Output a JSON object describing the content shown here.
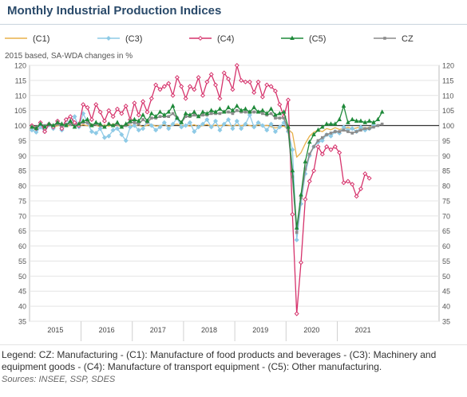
{
  "page": {
    "title": "Monthly Industrial Production Indices",
    "legend_note": "Legend: CZ: Manufacturing - (C1): Manufacture of food products and beverages - (C3): Machinery and equipment goods - (C4): Manufacture of transport equipment - (C5): Other manufacturing.",
    "sources": "Sources: INSEE, SSP, SDES"
  },
  "chart_data": {
    "type": "line",
    "subtitle": "2015 based, SA-WDA changes in %",
    "ylim": [
      35,
      120
    ],
    "yticks": [
      35,
      40,
      45,
      50,
      55,
      60,
      65,
      70,
      75,
      80,
      85,
      90,
      95,
      100,
      105,
      110,
      115,
      120
    ],
    "xlabels": [
      "2015",
      "2016",
      "2017",
      "2018",
      "2019",
      "2020",
      "2021"
    ],
    "grid": true,
    "reference_line": 100,
    "legend_position": "top",
    "x_start": "2015-01",
    "series": [
      {
        "name": "(C1)",
        "color": "#e8b04a",
        "marker": "none",
        "values": [
          99.5,
          99.8,
          99.2,
          100.0,
          100.3,
          99.6,
          99.9,
          100.4,
          99.7,
          100.1,
          100.2,
          99.8,
          100.3,
          99.9,
          100.5,
          100.1,
          99.6,
          100.2,
          99.8,
          100.6,
          100.0,
          99.7,
          100.3,
          100.1,
          99.9,
          100.2,
          99.6,
          100.1,
          100.4,
          99.8,
          100.0,
          100.3,
          99.7,
          100.2,
          100.5,
          99.9,
          100.1,
          99.8,
          100.3,
          99.6,
          100.0,
          100.4,
          99.7,
          100.2,
          99.9,
          100.3,
          100.1,
          99.8,
          100.2,
          99.9,
          100.4,
          100.0,
          99.7,
          100.3,
          99.8,
          100.1,
          99.6,
          99.2,
          99.5,
          99.8,
          98.8,
          97.5,
          89.5,
          91.0,
          94.0,
          96.5,
          97.8,
          98.5,
          98.0,
          99.0,
          98.6,
          99.3,
          98.7,
          99.0,
          99.4,
          98.9,
          99.2,
          99.6,
          99.0,
          99.5,
          100.0
        ]
      },
      {
        "name": "(C3)",
        "color": "#8ecae6",
        "marker": "diamond",
        "values": [
          98.5,
          97.8,
          99.5,
          98.0,
          100.2,
          99.0,
          101.5,
          98.5,
          102.0,
          100.5,
          103.0,
          99.5,
          104.0,
          101.0,
          98.0,
          97.5,
          99.0,
          96.0,
          96.5,
          98.5,
          99.0,
          97.0,
          95.0,
          99.5,
          100.0,
          98.5,
          99.0,
          101.5,
          100.0,
          98.5,
          99.5,
          101.0,
          99.0,
          100.5,
          102.5,
          99.5,
          100.0,
          101.0,
          98.0,
          99.5,
          100.5,
          102.0,
          99.5,
          101.5,
          98.5,
          100.5,
          102.0,
          99.0,
          101.5,
          99.0,
          100.5,
          103.5,
          99.5,
          101.0,
          100.0,
          98.5,
          100.5,
          98.0,
          99.5,
          101.0,
          98.0,
          92.0,
          62.0,
          74.0,
          84.0,
          90.0,
          93.0,
          94.5,
          95.0,
          97.0,
          96.5,
          98.0,
          97.5,
          99.5,
          98.5,
          99.0,
          98.0,
          99.5,
          98.5,
          99.0,
          100.0
        ]
      },
      {
        "name": "(C4)",
        "color": "#d6336c",
        "marker": "diamond-open",
        "values": [
          100.0,
          99.0,
          101.0,
          98.0,
          100.5,
          99.5,
          101.5,
          99.0,
          102.0,
          103.0,
          101.0,
          100.0,
          107.0,
          106.0,
          102.0,
          107.0,
          104.5,
          101.5,
          105.0,
          103.0,
          105.5,
          104.0,
          106.5,
          102.0,
          107.5,
          103.5,
          108.0,
          104.5,
          109.0,
          113.5,
          112.0,
          113.0,
          114.0,
          110.0,
          116.0,
          113.0,
          109.0,
          113.0,
          112.0,
          116.0,
          110.0,
          114.5,
          117.0,
          113.5,
          109.0,
          117.5,
          115.5,
          112.0,
          120.0,
          115.0,
          114.5,
          114.5,
          111.0,
          114.5,
          109.5,
          113.5,
          113.0,
          111.5,
          107.0,
          103.0,
          108.5,
          70.5,
          37.5,
          54.5,
          75.5,
          81.5,
          85.0,
          93.0,
          90.5,
          93.0,
          92.0,
          93.0,
          91.0,
          81.0,
          81.5,
          80.5,
          76.5,
          79.0,
          84.0,
          82.5
        ]
      },
      {
        "name": "(C5)",
        "color": "#1f8a3a",
        "marker": "triangle",
        "values": [
          99.5,
          99.0,
          100.5,
          99.5,
          100.5,
          100.0,
          101.0,
          100.5,
          100.0,
          101.5,
          99.5,
          100.5,
          101.5,
          102.0,
          100.0,
          101.0,
          100.5,
          99.5,
          100.5,
          100.0,
          101.0,
          99.5,
          100.5,
          101.5,
          102.0,
          101.5,
          103.5,
          101.5,
          104.0,
          103.0,
          104.5,
          103.5,
          104.5,
          106.5,
          102.5,
          101.0,
          104.0,
          103.5,
          104.5,
          103.0,
          104.5,
          104.0,
          105.0,
          104.5,
          105.5,
          104.5,
          106.0,
          105.0,
          106.5,
          105.0,
          105.5,
          104.5,
          106.0,
          104.5,
          105.0,
          104.0,
          105.5,
          103.5,
          104.0,
          104.5,
          99.5,
          85.0,
          66.0,
          77.0,
          88.0,
          94.5,
          97.0,
          98.5,
          99.5,
          100.5,
          100.5,
          100.5,
          102.0,
          106.5,
          101.0,
          102.0,
          101.5,
          101.5,
          101.0,
          101.5,
          101.0,
          102.0,
          104.5
        ]
      },
      {
        "name": "CZ",
        "color": "#8c8c8c",
        "marker": "square",
        "values": [
          99.5,
          99.5,
          100.5,
          100.0,
          100.5,
          100.0,
          100.5,
          100.0,
          100.5,
          100.5,
          100.0,
          100.5,
          101.0,
          101.0,
          100.0,
          100.5,
          100.0,
          99.5,
          100.5,
          100.0,
          100.5,
          99.5,
          100.0,
          101.0,
          101.0,
          100.5,
          102.0,
          101.0,
          102.5,
          102.5,
          103.0,
          103.0,
          103.0,
          104.0,
          102.5,
          101.0,
          103.0,
          103.0,
          103.5,
          103.0,
          103.5,
          103.5,
          104.0,
          104.0,
          104.0,
          104.5,
          104.5,
          104.0,
          105.0,
          104.5,
          104.5,
          104.5,
          104.5,
          104.5,
          104.0,
          103.5,
          104.0,
          102.5,
          102.5,
          102.5,
          98.5,
          83.0,
          64.5,
          76.0,
          85.5,
          90.5,
          93.0,
          95.0,
          96.0,
          97.0,
          97.5,
          98.0,
          98.0,
          98.5,
          98.0,
          97.5,
          98.0,
          98.5,
          99.0,
          99.0,
          99.5,
          100.0,
          100.5
        ]
      }
    ]
  }
}
